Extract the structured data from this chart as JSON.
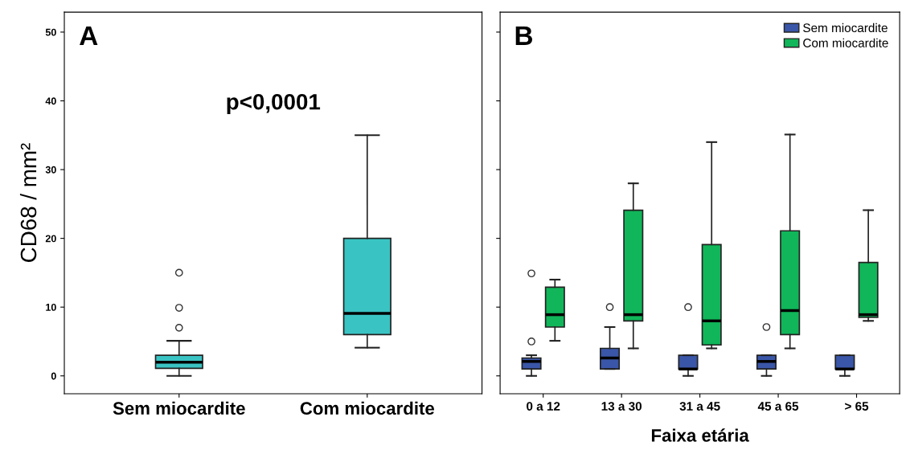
{
  "chart_data": [
    {
      "type": "box",
      "ylabel": "CD68 / mm²",
      "categories": [
        "Sem miocardite",
        "Com miocardite"
      ],
      "color": "#3ac3c3",
      "boxes": [
        {
          "low": 0,
          "q1": 1.1,
          "median": 2,
          "q3": 3,
          "high": 5.1,
          "outliers": [
            7,
            9.9,
            15
          ]
        },
        {
          "low": 4.1,
          "q1": 6,
          "median": 9.1,
          "q3": 20,
          "high": 35
        }
      ],
      "ylim": [
        -2.6,
        52.9
      ],
      "yticks": [
        0,
        10,
        20,
        30,
        40,
        50
      ],
      "grid": false,
      "annotations": [
        "A",
        "p<0,0001"
      ]
    },
    {
      "type": "box",
      "xlabel": "Faixa etária",
      "categories": [
        "0 a 12",
        "13 a 30",
        "31 a 45",
        "45 a 65",
        "> 65"
      ],
      "series": [
        {
          "name": "Sem miocardite",
          "color": "#3a56a8",
          "boxes": [
            {
              "low": 0,
              "q1": 1,
              "median": 2.1,
              "q3": 2.6,
              "high": 3,
              "outliers": [
                5,
                14.9
              ]
            },
            {
              "low": 1,
              "q1": 1,
              "median": 2.6,
              "q3": 4,
              "high": 7.1,
              "outliers": [
                10
              ]
            },
            {
              "low": 0,
              "q1": 1,
              "median": 1,
              "q3": 3,
              "high": 3,
              "outliers": [
                10
              ]
            },
            {
              "low": 0,
              "q1": 1,
              "median": 2.1,
              "q3": 3,
              "high": 3,
              "outliers": [
                7.1
              ]
            },
            {
              "low": 0,
              "q1": 1,
              "median": 1,
              "q3": 3,
              "high": 3
            }
          ]
        },
        {
          "name": "Com miocardite",
          "color": "#10b659",
          "boxes": [
            {
              "low": 5.1,
              "q1": 7.1,
              "median": 8.9,
              "q3": 12.9,
              "high": 14
            },
            {
              "low": 4,
              "q1": 8,
              "median": 8.9,
              "q3": 24.1,
              "high": 28
            },
            {
              "low": 4,
              "q1": 4.5,
              "median": 8,
              "q3": 19.1,
              "high": 34
            },
            {
              "low": 4,
              "q1": 6,
              "median": 9.5,
              "q3": 21.1,
              "high": 35.1
            },
            {
              "low": 8,
              "q1": 8.5,
              "median": 8.9,
              "q3": 16.5,
              "high": 24.1
            }
          ]
        }
      ],
      "ylim": [
        -2.6,
        52.9
      ],
      "yticks": [
        0,
        10,
        20,
        30,
        40,
        50
      ],
      "tick_labels": "x",
      "legend": "top right",
      "grid": false,
      "annotations": [
        "B"
      ]
    }
  ]
}
